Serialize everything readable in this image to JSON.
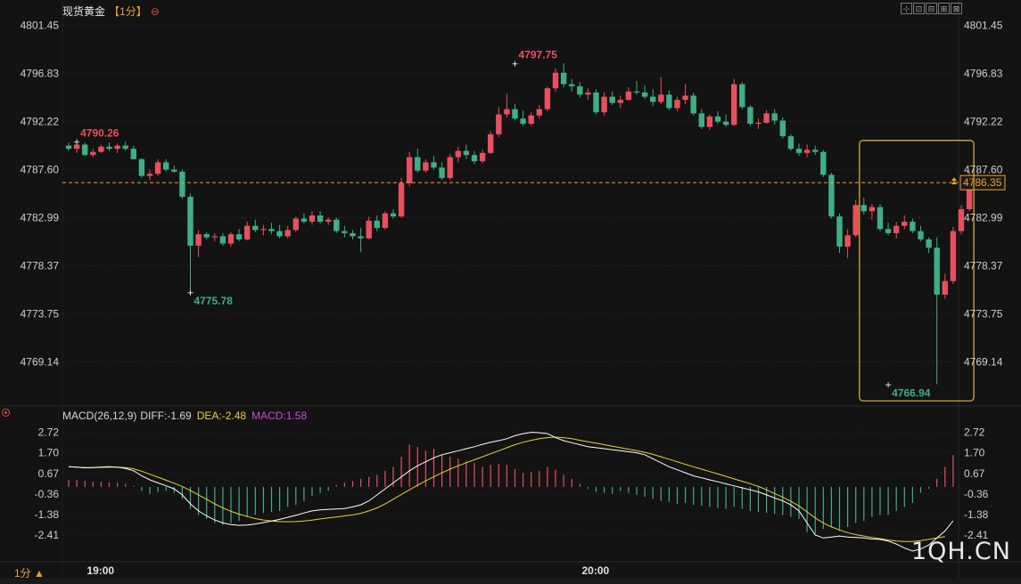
{
  "header": {
    "title": "现货黄金",
    "period": "【1分】",
    "collapse_glyph": "⊖"
  },
  "toolbar": [
    "⊹",
    "⊡",
    "⊟",
    "⊞",
    "⊠"
  ],
  "indicator": {
    "name": "MACD(26,12,9)",
    "diff": "DIFF:-1.69",
    "dea": "DEA:-2.48",
    "macd": "MACD:1.58"
  },
  "period_button": "1分 ▲",
  "watermark": "1QH.CN",
  "colors": {
    "up": "#e8505e",
    "down": "#3fae86",
    "dif": "#ffffff",
    "dea": "#e6d23c",
    "last": "#f0a030",
    "box": "#e6b43c"
  },
  "chart_data": {
    "type": "candlestick",
    "title": "现货黄金",
    "price_ticks": [
      "4801.45",
      "4796.83",
      "4792.22",
      "4787.60",
      "4782.99",
      "4778.37",
      "4773.75",
      "4769.14"
    ],
    "ylim": [
      4765.0,
      4802.0
    ],
    "time_labels": [
      {
        "i": 4,
        "label": "19:00"
      },
      {
        "i": 65,
        "label": "20:00"
      }
    ],
    "last_price": "4786.35",
    "annotations": [
      {
        "i": 1,
        "price": 4790.26,
        "label": "4790.26",
        "kind": "high"
      },
      {
        "i": 15,
        "price": 4775.78,
        "label": "4775.78",
        "kind": "low"
      },
      {
        "i": 55,
        "price": 4797.75,
        "label": "4797.75",
        "kind": "high"
      },
      {
        "i": 101,
        "price": 4766.94,
        "label": "4766.94",
        "kind": "low"
      }
    ],
    "highlight_box": {
      "i_start": 98,
      "i_end": 111,
      "price_top": 4790.4,
      "price_bottom": 4765.4
    },
    "candles": [
      [
        4789.9,
        4790.2,
        4789.4,
        4789.6
      ],
      [
        4789.6,
        4790.3,
        4789.2,
        4790.0
      ],
      [
        4790.0,
        4790.2,
        4788.9,
        4789.0
      ],
      [
        4789.0,
        4789.6,
        4788.8,
        4789.3
      ],
      [
        4789.3,
        4790.0,
        4789.2,
        4789.8
      ],
      [
        4789.8,
        4790.2,
        4789.4,
        4789.6
      ],
      [
        4789.6,
        4790.1,
        4789.2,
        4789.9
      ],
      [
        4789.9,
        4790.3,
        4789.4,
        4789.6
      ],
      [
        4789.6,
        4789.9,
        4788.6,
        4788.6
      ],
      [
        4788.6,
        4788.7,
        4786.8,
        4787.0
      ],
      [
        4787.0,
        4787.6,
        4786.6,
        4787.2
      ],
      [
        4787.2,
        4788.6,
        4787.0,
        4788.3
      ],
      [
        4788.3,
        4788.6,
        4787.4,
        4787.6
      ],
      [
        4787.6,
        4788.0,
        4787.3,
        4787.4
      ],
      [
        4787.4,
        4787.6,
        4784.8,
        4785.0
      ],
      [
        4785.0,
        4785.3,
        4775.8,
        4780.3
      ],
      [
        4780.3,
        4781.8,
        4779.2,
        4781.4
      ],
      [
        4781.4,
        4781.6,
        4780.9,
        4781.1
      ],
      [
        4781.1,
        4781.5,
        4780.7,
        4781.2
      ],
      [
        4781.2,
        4781.5,
        4780.3,
        4780.5
      ],
      [
        4780.5,
        4781.6,
        4780.2,
        4781.4
      ],
      [
        4781.4,
        4781.9,
        4780.7,
        4780.9
      ],
      [
        4780.9,
        4782.6,
        4780.8,
        4782.2
      ],
      [
        4782.2,
        4782.8,
        4781.6,
        4781.8
      ],
      [
        4781.8,
        4782.3,
        4781.3,
        4781.9
      ],
      [
        4781.9,
        4782.5,
        4781.4,
        4781.7
      ],
      [
        4781.7,
        4782.3,
        4781.0,
        4781.2
      ],
      [
        4781.2,
        4782.2,
        4781.0,
        4781.8
      ],
      [
        4781.8,
        4783.1,
        4781.6,
        4782.9
      ],
      [
        4782.9,
        4783.4,
        4782.4,
        4782.6
      ],
      [
        4782.6,
        4783.6,
        4782.3,
        4783.2
      ],
      [
        4783.2,
        4783.6,
        4782.4,
        4782.6
      ],
      [
        4782.6,
        4783.0,
        4782.3,
        4782.8
      ],
      [
        4782.8,
        4783.0,
        4781.5,
        4781.7
      ],
      [
        4781.7,
        4782.2,
        4781.1,
        4781.5
      ],
      [
        4781.5,
        4781.8,
        4780.9,
        4781.2
      ],
      [
        4781.2,
        4782.0,
        4779.7,
        4781.0
      ],
      [
        4781.0,
        4783.1,
        4780.9,
        4782.7
      ],
      [
        4782.7,
        4783.2,
        4781.7,
        4782.0
      ],
      [
        4782.0,
        4783.6,
        4781.8,
        4783.4
      ],
      [
        4783.4,
        4783.8,
        4782.9,
        4783.1
      ],
      [
        4783.1,
        4786.8,
        4783.0,
        4786.3
      ],
      [
        4786.3,
        4789.3,
        4786.0,
        4788.8
      ],
      [
        4788.8,
        4789.6,
        4787.3,
        4787.5
      ],
      [
        4787.5,
        4788.6,
        4787.3,
        4788.3
      ],
      [
        4788.3,
        4788.9,
        4787.6,
        4787.8
      ],
      [
        4787.8,
        4788.3,
        4786.6,
        4786.8
      ],
      [
        4786.8,
        4789.1,
        4786.6,
        4788.8
      ],
      [
        4788.8,
        4789.8,
        4788.3,
        4789.4
      ],
      [
        4789.4,
        4790.0,
        4788.6,
        4789.0
      ],
      [
        4789.0,
        4789.4,
        4788.1,
        4788.4
      ],
      [
        4788.4,
        4789.5,
        4788.2,
        4789.2
      ],
      [
        4789.2,
        4791.3,
        4789.1,
        4791.0
      ],
      [
        4791.0,
        4793.6,
        4790.7,
        4792.9
      ],
      [
        4792.9,
        4794.9,
        4792.6,
        4793.4
      ],
      [
        4793.4,
        4793.9,
        4792.3,
        4792.5
      ],
      [
        4792.5,
        4793.3,
        4791.8,
        4792.0
      ],
      [
        4792.0,
        4793.1,
        4791.8,
        4792.8
      ],
      [
        4792.8,
        4793.8,
        4792.5,
        4793.4
      ],
      [
        4793.4,
        4795.6,
        4793.2,
        4795.4
      ],
      [
        4795.4,
        4797.3,
        4795.1,
        4796.9
      ],
      [
        4796.9,
        4797.8,
        4795.5,
        4795.8
      ],
      [
        4795.8,
        4796.3,
        4795.1,
        4795.6
      ],
      [
        4795.6,
        4796.0,
        4794.5,
        4794.8
      ],
      [
        4794.8,
        4795.4,
        4794.3,
        4795.0
      ],
      [
        4795.0,
        4795.3,
        4792.9,
        4793.1
      ],
      [
        4793.1,
        4795.0,
        4792.8,
        4794.6
      ],
      [
        4794.6,
        4795.1,
        4793.8,
        4794.0
      ],
      [
        4794.0,
        4794.7,
        4793.5,
        4794.3
      ],
      [
        4794.3,
        4795.5,
        4794.2,
        4795.1
      ],
      [
        4795.1,
        4796.1,
        4794.8,
        4795.0
      ],
      [
        4795.0,
        4795.7,
        4794.4,
        4794.6
      ],
      [
        4794.6,
        4795.3,
        4793.7,
        4794.1
      ],
      [
        4794.1,
        4796.5,
        4793.9,
        4794.8
      ],
      [
        4794.8,
        4795.2,
        4793.3,
        4793.5
      ],
      [
        4793.5,
        4794.6,
        4793.2,
        4794.3
      ],
      [
        4794.3,
        4795.8,
        4793.9,
        4794.7
      ],
      [
        4794.7,
        4795.0,
        4792.8,
        4793.0
      ],
      [
        4793.0,
        4793.4,
        4791.5,
        4791.7
      ],
      [
        4791.7,
        4792.9,
        4791.4,
        4792.7
      ],
      [
        4792.7,
        4793.2,
        4792.0,
        4792.2
      ],
      [
        4792.2,
        4792.9,
        4791.7,
        4791.9
      ],
      [
        4791.9,
        4796.3,
        4791.8,
        4795.8
      ],
      [
        4795.8,
        4796.0,
        4793.4,
        4793.6
      ],
      [
        4793.6,
        4793.8,
        4791.8,
        4792.0
      ],
      [
        4792.0,
        4792.5,
        4791.5,
        4792.1
      ],
      [
        4792.1,
        4793.3,
        4792.0,
        4793.0
      ],
      [
        4793.0,
        4793.4,
        4791.9,
        4792.3
      ],
      [
        4792.3,
        4792.6,
        4790.6,
        4790.8
      ],
      [
        4790.8,
        4791.0,
        4789.4,
        4789.6
      ],
      [
        4789.6,
        4790.1,
        4788.9,
        4789.2
      ],
      [
        4789.2,
        4790.0,
        4788.8,
        4789.5
      ],
      [
        4789.5,
        4789.9,
        4789.0,
        4789.3
      ],
      [
        4789.3,
        4789.5,
        4786.9,
        4787.1
      ],
      [
        4787.1,
        4787.3,
        4782.9,
        4783.1
      ],
      [
        4783.1,
        4783.4,
        4779.6,
        4780.2
      ],
      [
        4780.2,
        4781.9,
        4779.1,
        4781.3
      ],
      [
        4781.3,
        4784.7,
        4781.1,
        4784.2
      ],
      [
        4784.2,
        4784.9,
        4783.3,
        4783.6
      ],
      [
        4783.6,
        4784.3,
        4782.8,
        4784.0
      ],
      [
        4784.0,
        4784.3,
        4781.7,
        4781.9
      ],
      [
        4781.9,
        4782.5,
        4781.3,
        4781.5
      ],
      [
        4781.5,
        4782.6,
        4781.0,
        4782.2
      ],
      [
        4782.2,
        4783.2,
        4781.9,
        4782.6
      ],
      [
        4782.6,
        4782.9,
        4781.5,
        4781.7
      ],
      [
        4781.7,
        4782.2,
        4780.7,
        4780.9
      ],
      [
        4780.9,
        4781.1,
        4779.6,
        4780.1
      ],
      [
        4780.1,
        4781.1,
        4767.0,
        4775.6
      ],
      [
        4775.6,
        4777.6,
        4775.2,
        4776.9
      ],
      [
        4776.9,
        4782.1,
        4776.6,
        4781.7
      ],
      [
        4781.7,
        4784.2,
        4781.4,
        4783.8
      ],
      [
        4783.8,
        4787.4,
        4783.6,
        4786.9
      ],
      [
        4786.9,
        4787.5,
        4785.8,
        4786.4
      ]
    ],
    "macd_ticks": [
      "2.72",
      "1.70",
      "0.67",
      "-0.36",
      "-1.38",
      "-2.41"
    ],
    "macd_ylim": [
      -3.6,
      3.1
    ],
    "macd_hist": [
      0.35,
      0.35,
      0.3,
      0.25,
      0.25,
      0.22,
      0.2,
      0.15,
      0.05,
      -0.2,
      -0.35,
      -0.25,
      -0.2,
      -0.3,
      -0.6,
      -1.1,
      -1.4,
      -1.6,
      -1.8,
      -1.9,
      -1.8,
      -1.7,
      -1.5,
      -1.4,
      -1.3,
      -1.25,
      -1.2,
      -1.0,
      -0.9,
      -0.7,
      -0.45,
      -0.3,
      -0.2,
      0.1,
      0.2,
      0.3,
      0.4,
      0.5,
      0.6,
      0.8,
      1.0,
      1.5,
      2.1,
      2.0,
      1.8,
      1.9,
      1.6,
      1.5,
      1.4,
      1.3,
      1.2,
      1.0,
      1.1,
      1.15,
      1.1,
      0.9,
      0.7,
      0.75,
      0.8,
      1.0,
      0.85,
      0.6,
      0.4,
      0.15,
      -0.1,
      -0.25,
      -0.3,
      -0.35,
      -0.2,
      -0.3,
      -0.4,
      -0.5,
      -0.6,
      -0.7,
      -0.75,
      -0.85,
      -0.8,
      -0.9,
      -0.95,
      -1.0,
      -1.05,
      -1.1,
      -1.0,
      -1.1,
      -1.2,
      -1.25,
      -1.3,
      -1.35,
      -1.4,
      -1.5,
      -1.6,
      -2.25,
      -2.35,
      -2.1,
      -2.0,
      -2.2,
      -2.0,
      -1.8,
      -1.7,
      -1.5,
      -1.4,
      -1.4,
      -1.2,
      -1.0,
      -0.8,
      -0.3,
      -0.1,
      0.4,
      1.0,
      1.58
    ],
    "macd_dif": [
      1.0,
      0.98,
      0.95,
      0.96,
      0.99,
      1.0,
      0.98,
      0.92,
      0.8,
      0.55,
      0.35,
      0.2,
      0.05,
      -0.1,
      -0.4,
      -0.85,
      -1.2,
      -1.45,
      -1.65,
      -1.8,
      -1.88,
      -1.92,
      -1.9,
      -1.85,
      -1.78,
      -1.7,
      -1.62,
      -1.52,
      -1.42,
      -1.3,
      -1.2,
      -1.15,
      -1.12,
      -1.1,
      -1.08,
      -1.0,
      -0.9,
      -0.7,
      -0.4,
      -0.1,
      0.2,
      0.5,
      0.8,
      1.05,
      1.25,
      1.45,
      1.6,
      1.7,
      1.8,
      1.9,
      2.0,
      2.12,
      2.22,
      2.3,
      2.4,
      2.55,
      2.65,
      2.72,
      2.7,
      2.65,
      2.45,
      2.3,
      2.2,
      2.1,
      2.0,
      1.95,
      1.9,
      1.85,
      1.8,
      1.75,
      1.7,
      1.6,
      1.4,
      1.2,
      1.0,
      0.85,
      0.7,
      0.55,
      0.45,
      0.35,
      0.25,
      0.15,
      0.05,
      -0.05,
      -0.15,
      -0.25,
      -0.4,
      -0.55,
      -0.7,
      -0.9,
      -1.2,
      -1.8,
      -2.4,
      -2.55,
      -2.5,
      -2.45,
      -2.5,
      -2.52,
      -2.55,
      -2.6,
      -2.62,
      -2.7,
      -2.85,
      -3.05,
      -3.2,
      -3.1,
      -2.9,
      -2.55,
      -2.2,
      -1.69
    ],
    "macd_dea": [
      1.0,
      0.98,
      0.96,
      0.96,
      0.97,
      0.98,
      0.98,
      0.96,
      0.9,
      0.78,
      0.63,
      0.48,
      0.33,
      0.18,
      0.02,
      -0.18,
      -0.4,
      -0.62,
      -0.85,
      -1.05,
      -1.22,
      -1.36,
      -1.48,
      -1.58,
      -1.65,
      -1.7,
      -1.73,
      -1.74,
      -1.73,
      -1.7,
      -1.66,
      -1.6,
      -1.55,
      -1.5,
      -1.45,
      -1.4,
      -1.32,
      -1.2,
      -1.05,
      -0.85,
      -0.62,
      -0.38,
      -0.15,
      0.08,
      0.3,
      0.5,
      0.7,
      0.88,
      1.05,
      1.2,
      1.35,
      1.5,
      1.65,
      1.8,
      1.95,
      2.1,
      2.22,
      2.32,
      2.4,
      2.45,
      2.48,
      2.45,
      2.4,
      2.32,
      2.25,
      2.18,
      2.1,
      2.02,
      1.95,
      1.88,
      1.8,
      1.72,
      1.62,
      1.5,
      1.38,
      1.25,
      1.12,
      1.0,
      0.88,
      0.76,
      0.64,
      0.52,
      0.4,
      0.28,
      0.16,
      0.02,
      -0.15,
      -0.33,
      -0.52,
      -0.72,
      -0.95,
      -1.25,
      -1.55,
      -1.8,
      -2.0,
      -2.15,
      -2.28,
      -2.38,
      -2.45,
      -2.52,
      -2.58,
      -2.65,
      -2.7,
      -2.72,
      -2.72,
      -2.68,
      -2.62,
      -2.55,
      -2.48
    ]
  }
}
